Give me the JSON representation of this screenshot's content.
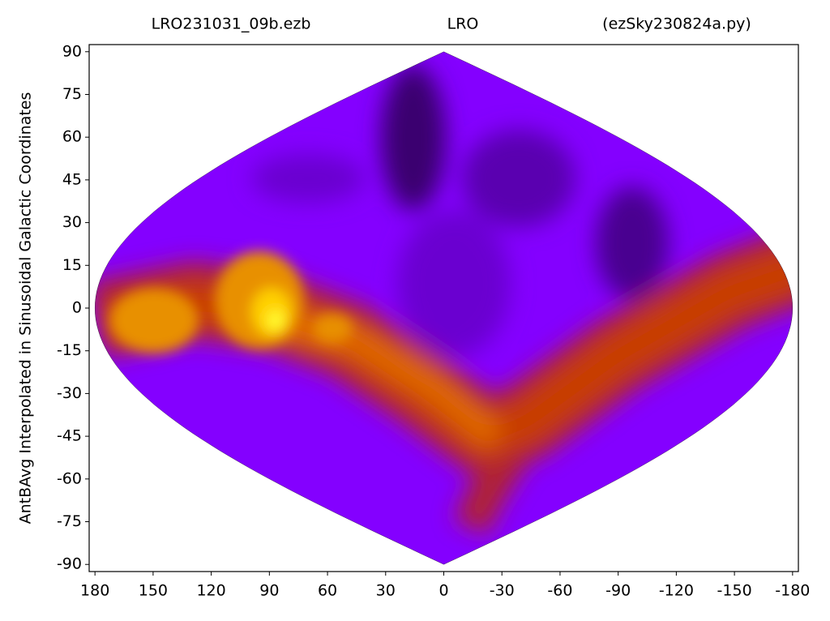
{
  "chart_data": {
    "type": "sky-map",
    "title_left": "LRO231031_09b.ezb",
    "title": "LRO",
    "title_right": "(ezSky230824a.py)",
    "y_label": "AntBAvg Interpolated in Sinusoidal Galactic Coordinates",
    "xlim": [
      183,
      -183
    ],
    "ylim": [
      -92.5,
      92.5
    ],
    "xticks": [
      180,
      150,
      120,
      90,
      60,
      30,
      0,
      -30,
      -60,
      -90,
      -120,
      -150,
      -180
    ],
    "yticks": [
      90,
      75,
      60,
      45,
      30,
      15,
      0,
      -15,
      -30,
      -45,
      -60,
      -75,
      -90
    ]
  }
}
